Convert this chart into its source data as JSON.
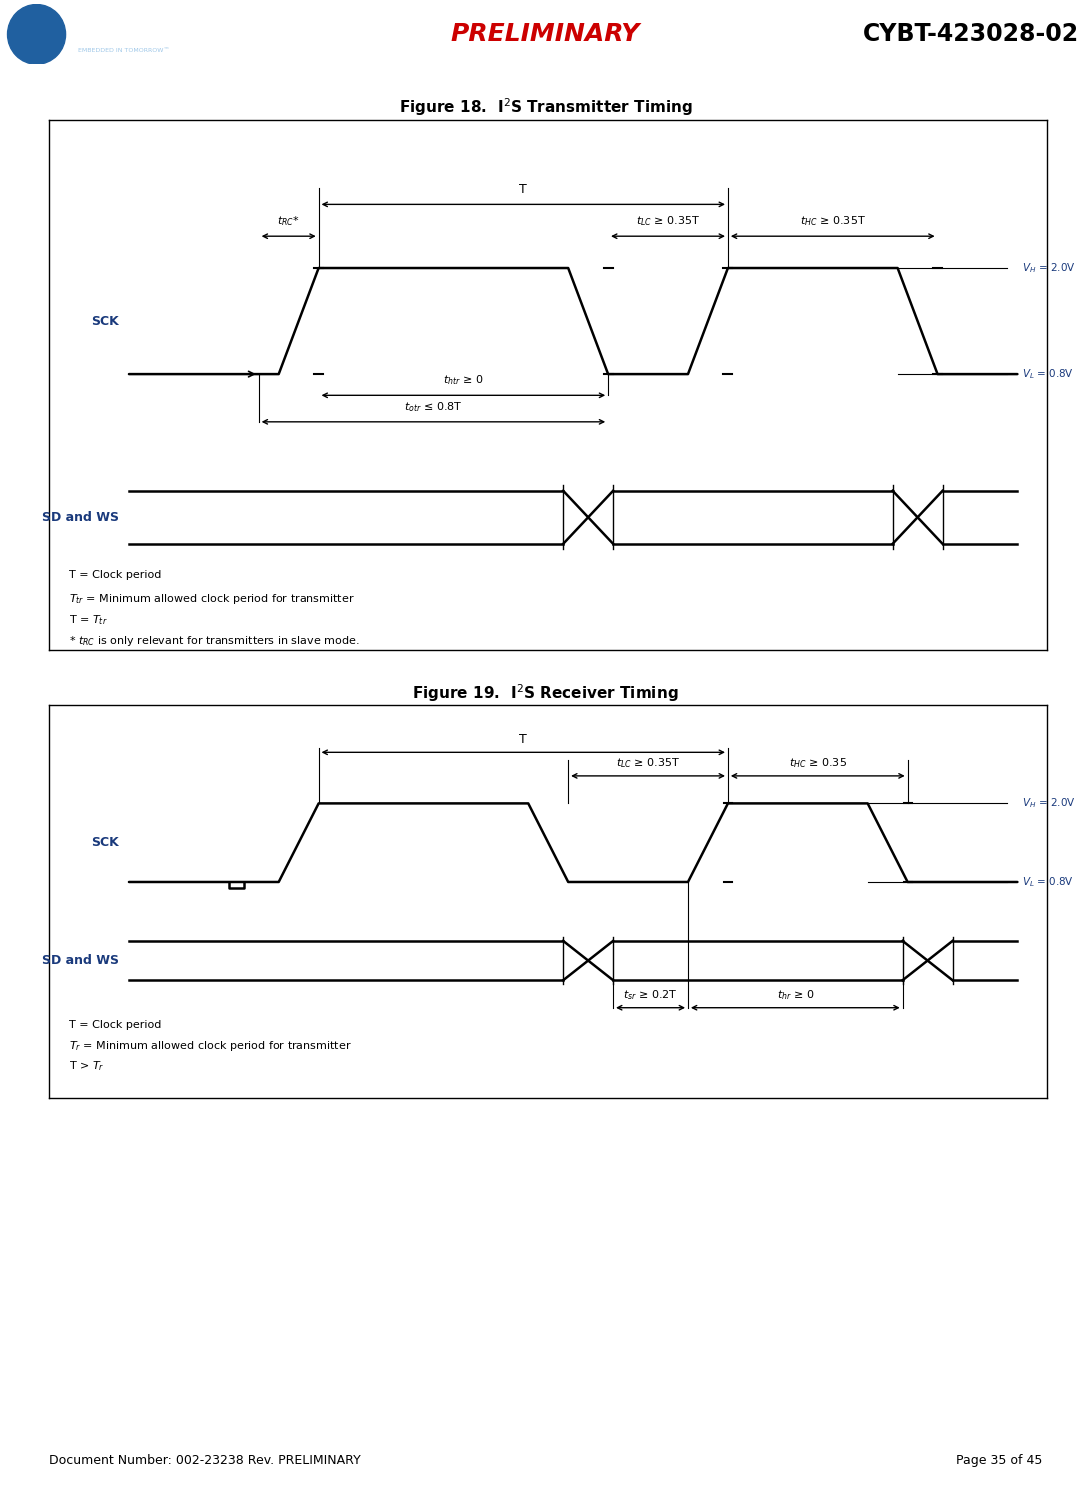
{
  "fig_width": 10.91,
  "fig_height": 14.94,
  "bg_color": "#ffffff",
  "header_bg": "#1e3a5f",
  "signal_color": "#000000",
  "label_color": "#1a3a7c",
  "preliminary_color": "#cc0000",
  "fig1_title": "Figure 18.  I$^2$S Transmitter Timing",
  "fig2_title": "Figure 19.  I$^2$S Receiver Timing",
  "footer_left": "Document Number: 002-23238 Rev. PRELIMINARY",
  "footer_right": "Page 35 of 45",
  "vh_label": "$V_H$ = 2.0V",
  "vl_label": "$V_L$ = 0.8V"
}
